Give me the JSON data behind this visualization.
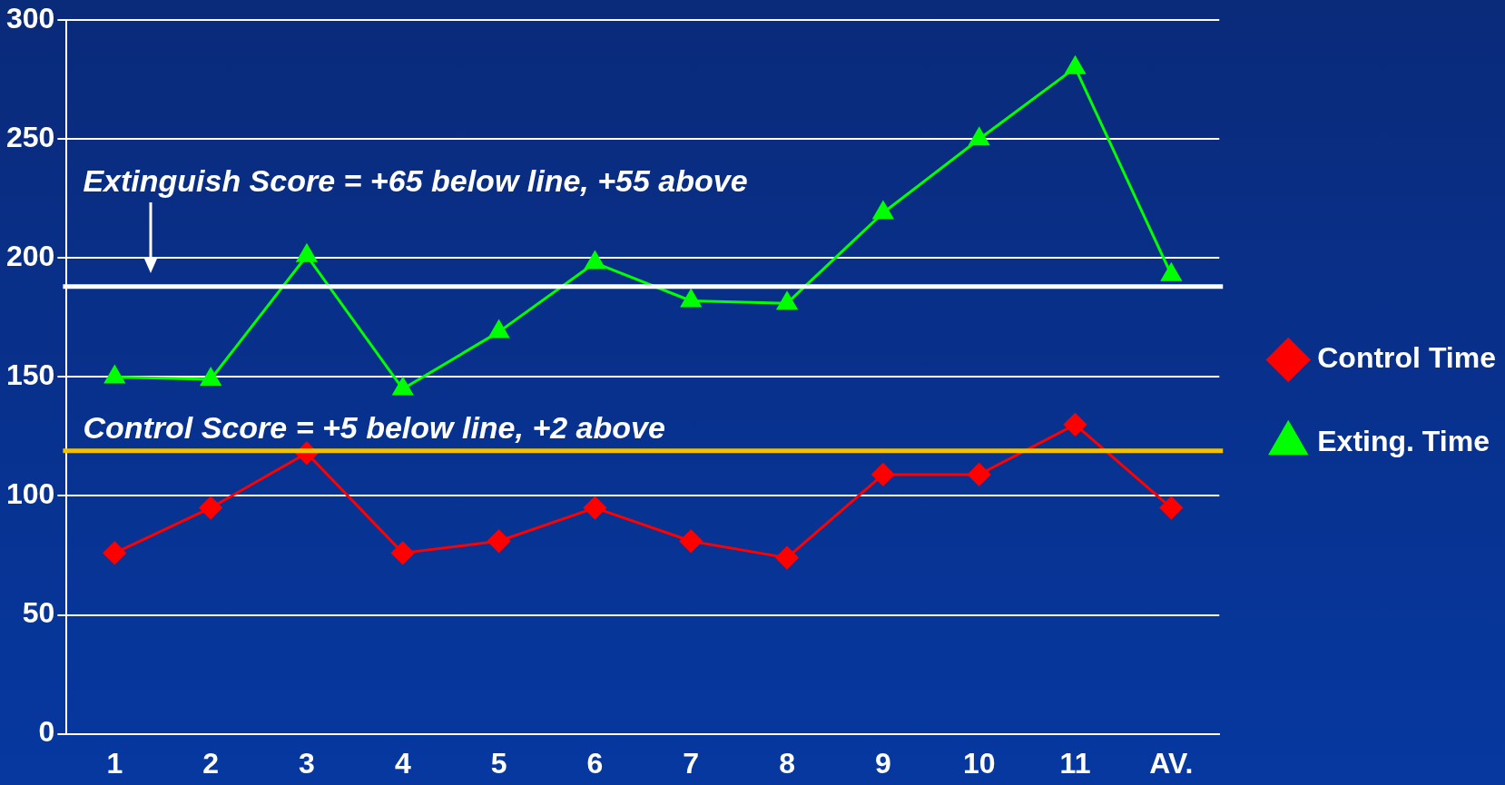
{
  "chart_data": {
    "type": "line",
    "categories": [
      "1",
      "2",
      "3",
      "4",
      "5",
      "6",
      "7",
      "8",
      "9",
      "10",
      "11",
      "AV."
    ],
    "series": [
      {
        "name": "Control Time",
        "color": "#ff0000",
        "marker": "diamond",
        "values": [
          76,
          95,
          118,
          76,
          81,
          95,
          81,
          74,
          109,
          109,
          130,
          95
        ]
      },
      {
        "name": "Exting. Time",
        "color": "#00ff00",
        "marker": "triangle",
        "values": [
          150,
          149,
          201,
          145,
          169,
          198,
          182,
          181,
          219,
          250,
          280,
          193
        ]
      }
    ],
    "annotations": [
      "Extinguish Score = +65 below line, +55 above"
    ],
    "ylim": [
      0,
      300
    ],
    "yticks": [
      0,
      50,
      100,
      150,
      200,
      250,
      300
    ],
    "grid": "y",
    "legend": "right",
    "ref_lines": [
      {
        "axis": "y",
        "value": 188,
        "color": "#ffffff"
      },
      {
        "axis": "y",
        "value": 119,
        "label": "Control Score = +5 below line, +2 above",
        "color": "#f2c200"
      }
    ]
  }
}
